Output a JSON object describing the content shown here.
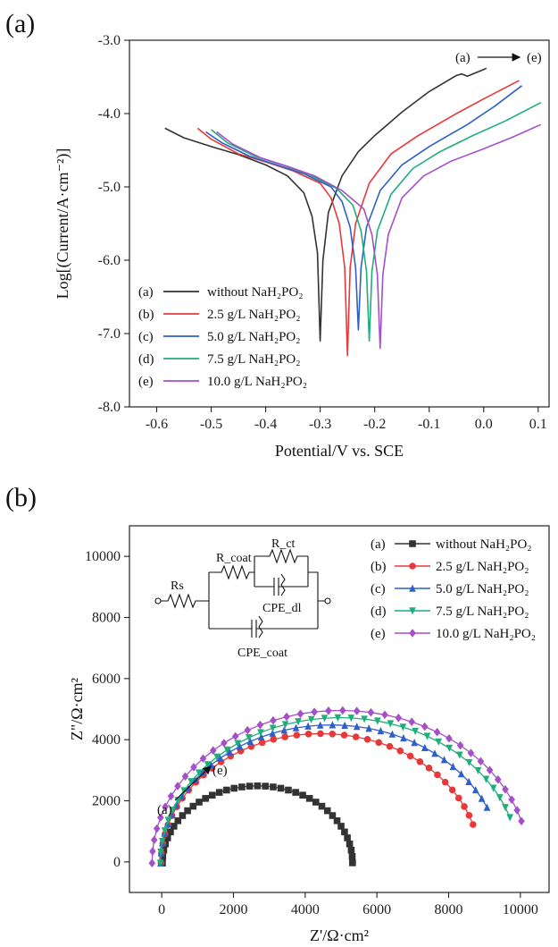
{
  "chart_data": [
    {
      "type": "line",
      "panel_label": "(a)",
      "xlabel": "Potential/V vs. SCE",
      "ylabel": "Log[(Current/A·cm⁻²)]",
      "xlim": [
        -0.65,
        0.12
      ],
      "ylim": [
        -8.0,
        -3.0
      ],
      "x_ticks": [
        -0.6,
        -0.5,
        -0.4,
        -0.3,
        -0.2,
        -0.1,
        0.0,
        0.1
      ],
      "x_tick_labels": [
        "-0.6",
        "-0.5",
        "-0.4",
        "-0.3",
        "-0.2",
        "-0.1",
        "0.0",
        "0.1"
      ],
      "y_ticks": [
        -3,
        -4,
        -5,
        -6,
        -7,
        -8
      ],
      "y_tick_labels": [
        "-3.0",
        "-4.0",
        "-5.0",
        "-6.0",
        "-7.0",
        "-8.0"
      ],
      "grid": false,
      "legend_position": "bottom-left",
      "annotation": {
        "from": "(a)",
        "to": "(e)"
      },
      "series": [
        {
          "tag": "(a)",
          "name": "without NaH₂PO₂",
          "color": "#333333",
          "ecorr": -0.3,
          "min_logi": -7.1,
          "x": [
            -0.585,
            -0.55,
            -0.5,
            -0.45,
            -0.4,
            -0.36,
            -0.33,
            -0.315,
            -0.305,
            -0.3,
            -0.295,
            -0.285,
            -0.26,
            -0.23,
            -0.2,
            -0.15,
            -0.1,
            -0.05,
            -0.04,
            -0.03,
            0.0,
            0.005
          ],
          "y": [
            -4.2,
            -4.33,
            -4.45,
            -4.56,
            -4.7,
            -4.85,
            -5.08,
            -5.4,
            -5.9,
            -7.1,
            -6.0,
            -5.35,
            -4.85,
            -4.52,
            -4.3,
            -3.98,
            -3.7,
            -3.48,
            -3.46,
            -3.49,
            -3.4,
            -3.38
          ]
        },
        {
          "tag": "(b)",
          "name": "2.5 g/L NaH₂PO₂",
          "color": "#e8393a",
          "ecorr": -0.25,
          "min_logi": -7.3,
          "x": [
            -0.525,
            -0.5,
            -0.45,
            -0.4,
            -0.35,
            -0.3,
            -0.28,
            -0.265,
            -0.255,
            -0.25,
            -0.245,
            -0.235,
            -0.21,
            -0.17,
            -0.12,
            -0.05,
            0.0,
            0.065
          ],
          "y": [
            -4.2,
            -4.35,
            -4.55,
            -4.66,
            -4.78,
            -4.95,
            -5.15,
            -5.5,
            -6.1,
            -7.3,
            -6.1,
            -5.5,
            -4.95,
            -4.55,
            -4.3,
            -4.0,
            -3.8,
            -3.55
          ]
        },
        {
          "tag": "(c)",
          "name": "5.0 g/L NaH₂PO₂",
          "color": "#2f5fc8",
          "ecorr": -0.23,
          "min_logi": -6.95,
          "x": [
            -0.51,
            -0.48,
            -0.43,
            -0.38,
            -0.33,
            -0.28,
            -0.26,
            -0.245,
            -0.235,
            -0.23,
            -0.225,
            -0.215,
            -0.19,
            -0.15,
            -0.1,
            -0.03,
            0.02,
            0.07
          ],
          "y": [
            -4.25,
            -4.4,
            -4.58,
            -4.7,
            -4.82,
            -5.0,
            -5.2,
            -5.55,
            -6.1,
            -6.95,
            -6.1,
            -5.55,
            -5.05,
            -4.7,
            -4.45,
            -4.15,
            -3.9,
            -3.62
          ]
        },
        {
          "tag": "(d)",
          "name": "7.5 g/L NaH₂PO₂",
          "color": "#1fae7a",
          "ecorr": -0.21,
          "min_logi": -7.1,
          "x": [
            -0.5,
            -0.47,
            -0.42,
            -0.37,
            -0.32,
            -0.27,
            -0.24,
            -0.225,
            -0.215,
            -0.21,
            -0.205,
            -0.195,
            -0.17,
            -0.13,
            -0.08,
            -0.02,
            0.04,
            0.105
          ],
          "y": [
            -4.22,
            -4.4,
            -4.58,
            -4.7,
            -4.83,
            -5.02,
            -5.25,
            -5.6,
            -6.15,
            -7.1,
            -6.15,
            -5.6,
            -5.1,
            -4.75,
            -4.52,
            -4.3,
            -4.1,
            -3.85
          ]
        },
        {
          "tag": "(e)",
          "name": "10.0 g/L NaH₂PO₂",
          "color": "#a54fc8",
          "ecorr": -0.19,
          "min_logi": -7.2,
          "x": [
            -0.49,
            -0.46,
            -0.41,
            -0.36,
            -0.31,
            -0.26,
            -0.22,
            -0.205,
            -0.195,
            -0.19,
            -0.185,
            -0.175,
            -0.15,
            -0.11,
            -0.06,
            0.0,
            0.05,
            0.105
          ],
          "y": [
            -4.25,
            -4.42,
            -4.6,
            -4.72,
            -4.85,
            -5.05,
            -5.3,
            -5.65,
            -6.2,
            -7.2,
            -6.2,
            -5.65,
            -5.15,
            -4.85,
            -4.65,
            -4.48,
            -4.33,
            -4.15
          ]
        }
      ]
    },
    {
      "type": "scatter",
      "panel_label": "(b)",
      "xlabel": "Z'/Ω·cm²",
      "ylabel": "Z\"/Ω·cm²",
      "xlim": [
        -900,
        10800
      ],
      "ylim": [
        -1000,
        11000
      ],
      "x_ticks": [
        0,
        2000,
        4000,
        6000,
        8000,
        10000
      ],
      "x_tick_labels": [
        "0",
        "2000",
        "4000",
        "6000",
        "8000",
        "10000"
      ],
      "y_ticks": [
        0,
        2000,
        4000,
        6000,
        8000,
        10000
      ],
      "y_tick_labels": [
        "0",
        "2000",
        "4000",
        "6000",
        "8000",
        "10000"
      ],
      "grid": false,
      "legend_position": "top-right",
      "annotation": {
        "from": "(a)",
        "to": "(e)"
      },
      "equivalent_circuit": {
        "labels": [
          "Rs",
          "R_coat",
          "R_ct",
          "CPE_dl",
          "CPE_coat"
        ]
      },
      "series": [
        {
          "tag": "(a)",
          "name": "without NaH₂PO₂",
          "color": "#333333",
          "marker": "square",
          "center": 2600,
          "radius": 2650,
          "shift": 70,
          "end_x": 5250
        },
        {
          "tag": "(b)",
          "name": "2.5 g/L NaH₂PO₂",
          "color": "#e8393a",
          "marker": "circle",
          "center": 4400,
          "radius": 4450,
          "shift": 30,
          "end_x": 8650
        },
        {
          "tag": "(c)",
          "name": "5.0 g/L NaH₂PO₂",
          "color": "#2f5fc8",
          "marker": "triangle-up",
          "center": 4700,
          "radius": 4750,
          "shift": 20,
          "end_x": 9050
        },
        {
          "tag": "(d)",
          "name": "7.5 g/L NaH₂PO₂",
          "color": "#1fae7a",
          "marker": "triangle-down",
          "center": 4950,
          "radius": 5000,
          "shift": 10,
          "end_x": 9700
        },
        {
          "tag": "(e)",
          "name": "10.0 g/L NaH₂PO₂",
          "color": "#a54fc8",
          "marker": "diamond",
          "center": 5100,
          "radius": 5250,
          "shift": -120,
          "end_x": 10150
        }
      ]
    }
  ]
}
